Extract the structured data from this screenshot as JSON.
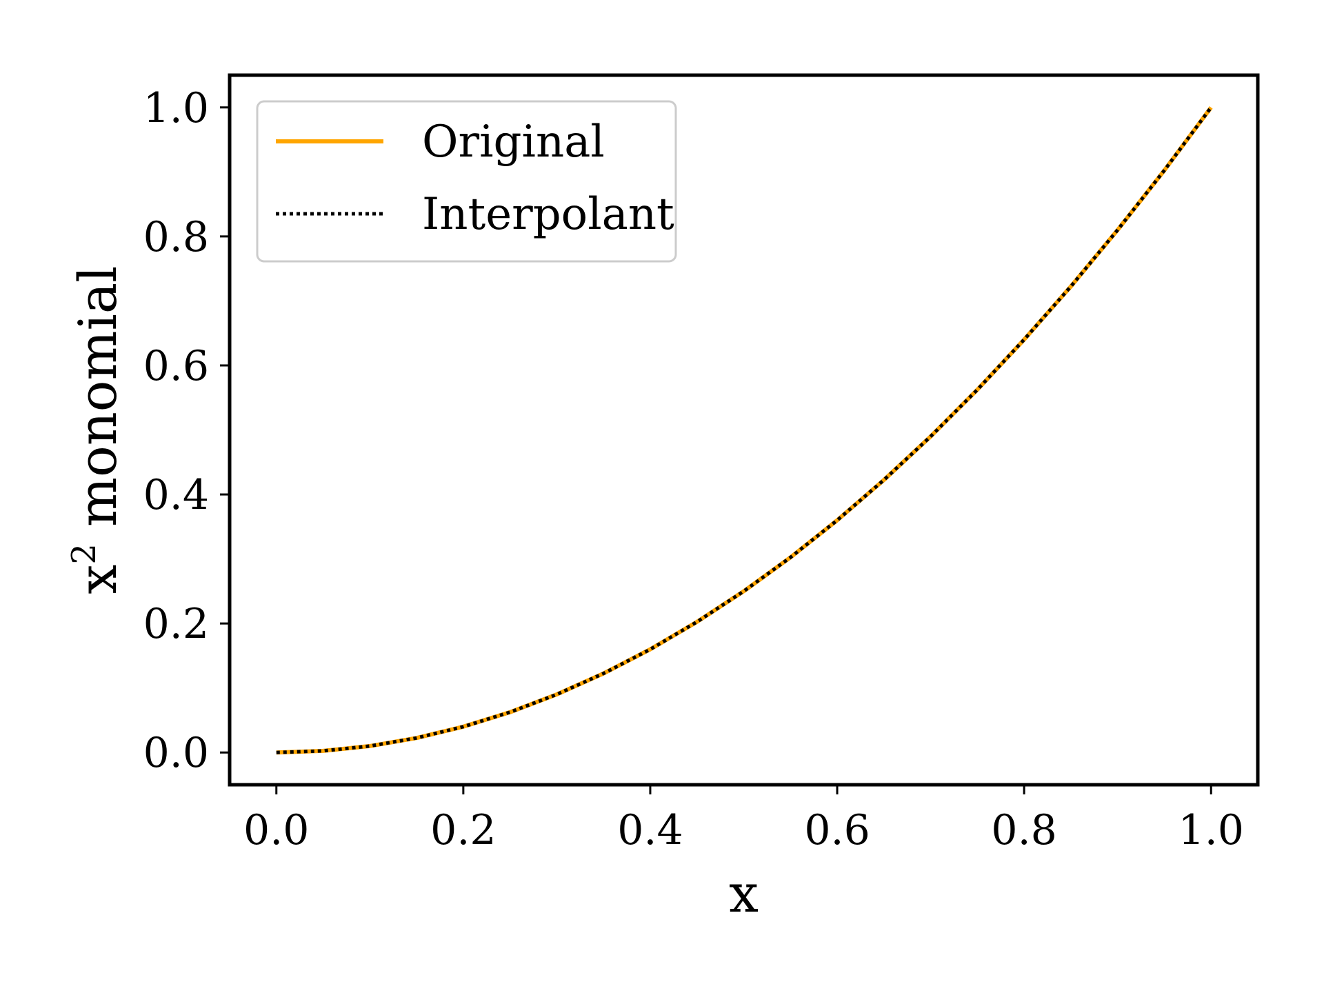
{
  "chart_data": {
    "type": "line",
    "xlabel": "x",
    "ylabel": "x",
    "ylabel_superscript": "2",
    "ylabel_suffix": " monomial",
    "xlim": [
      -0.05,
      1.05
    ],
    "ylim": [
      -0.05,
      1.05
    ],
    "xticks": [
      0.0,
      0.2,
      0.4,
      0.6,
      0.8,
      1.0
    ],
    "xtick_labels": [
      "0.0",
      "0.2",
      "0.4",
      "0.6",
      "0.8",
      "1.0"
    ],
    "yticks": [
      0.0,
      0.2,
      0.4,
      0.6,
      0.8,
      1.0
    ],
    "ytick_labels": [
      "0.0",
      "0.2",
      "0.4",
      "0.6",
      "0.8",
      "1.0"
    ],
    "grid": false,
    "legend_position": "top-left",
    "x": [
      0.0,
      0.05,
      0.1,
      0.15,
      0.2,
      0.25,
      0.3,
      0.35,
      0.4,
      0.45,
      0.5,
      0.55,
      0.6,
      0.65,
      0.7,
      0.75,
      0.8,
      0.85,
      0.9,
      0.95,
      1.0
    ],
    "series": [
      {
        "name": "Original",
        "color": "#ffa500",
        "style": "solid",
        "values": [
          0.0,
          0.0025,
          0.01,
          0.0225,
          0.04,
          0.0625,
          0.09,
          0.1225,
          0.16,
          0.2025,
          0.25,
          0.3025,
          0.36,
          0.4225,
          0.49,
          0.5625,
          0.64,
          0.7225,
          0.81,
          0.9025,
          1.0
        ]
      },
      {
        "name": "Interpolant",
        "color": "#000000",
        "style": "dotted",
        "values": [
          0.0,
          0.0025,
          0.01,
          0.0225,
          0.04,
          0.0625,
          0.09,
          0.1225,
          0.16,
          0.2025,
          0.25,
          0.3025,
          0.36,
          0.4225,
          0.49,
          0.5625,
          0.64,
          0.7225,
          0.81,
          0.9025,
          1.0
        ]
      }
    ]
  }
}
